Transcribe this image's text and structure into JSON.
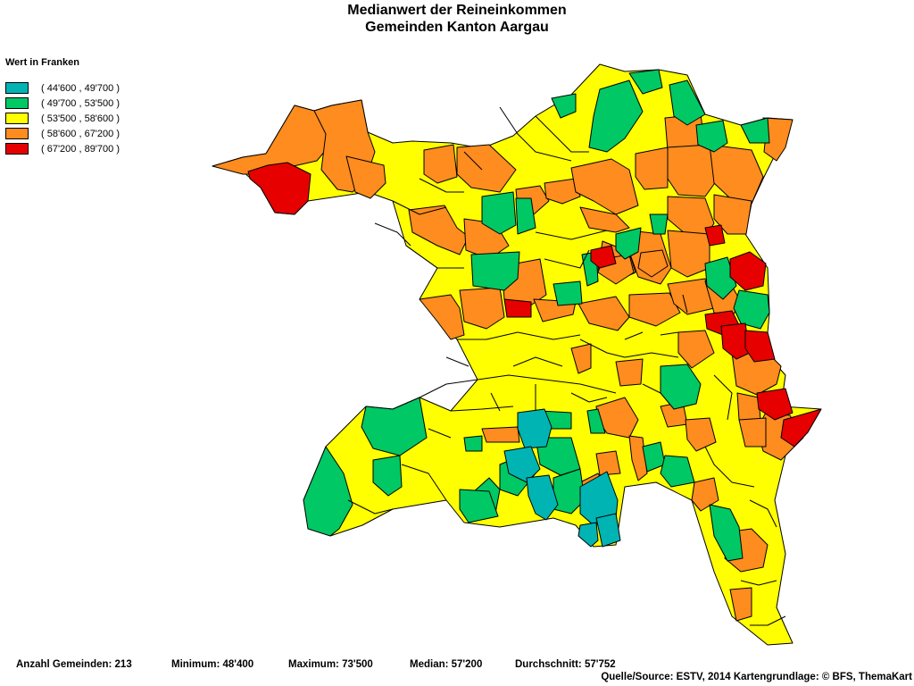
{
  "map": {
    "title_line1": "Medianwert der Reineinkommen",
    "title_line2": "Gemeinden Kanton Aargau",
    "legend": {
      "title": "Wert in Franken",
      "classes": [
        {
          "label": "( 44'600 , 49'700 )",
          "color": "#00b4b4"
        },
        {
          "label": "( 49'700 , 53'500 )",
          "color": "#00c864"
        },
        {
          "label": "( 53'500 , 58'600 )",
          "color": "#ffff00"
        },
        {
          "label": "( 58'600 , 67'200 )",
          "color": "#ff8c1e"
        },
        {
          "label": "( 67'200 , 89'700 )",
          "color": "#e60000"
        }
      ]
    },
    "stats": {
      "count": "Anzahl Gemeinden: 213",
      "minimum": "Minimum: 48'400",
      "maximum": "Maximum: 73'500",
      "median": "Median: 57'200",
      "mean": "Durchschnitt: 57'752"
    },
    "source": "Quelle/Source: ESTV, 2014 Kartengrundlage: © BFS, ThemaKart"
  }
}
